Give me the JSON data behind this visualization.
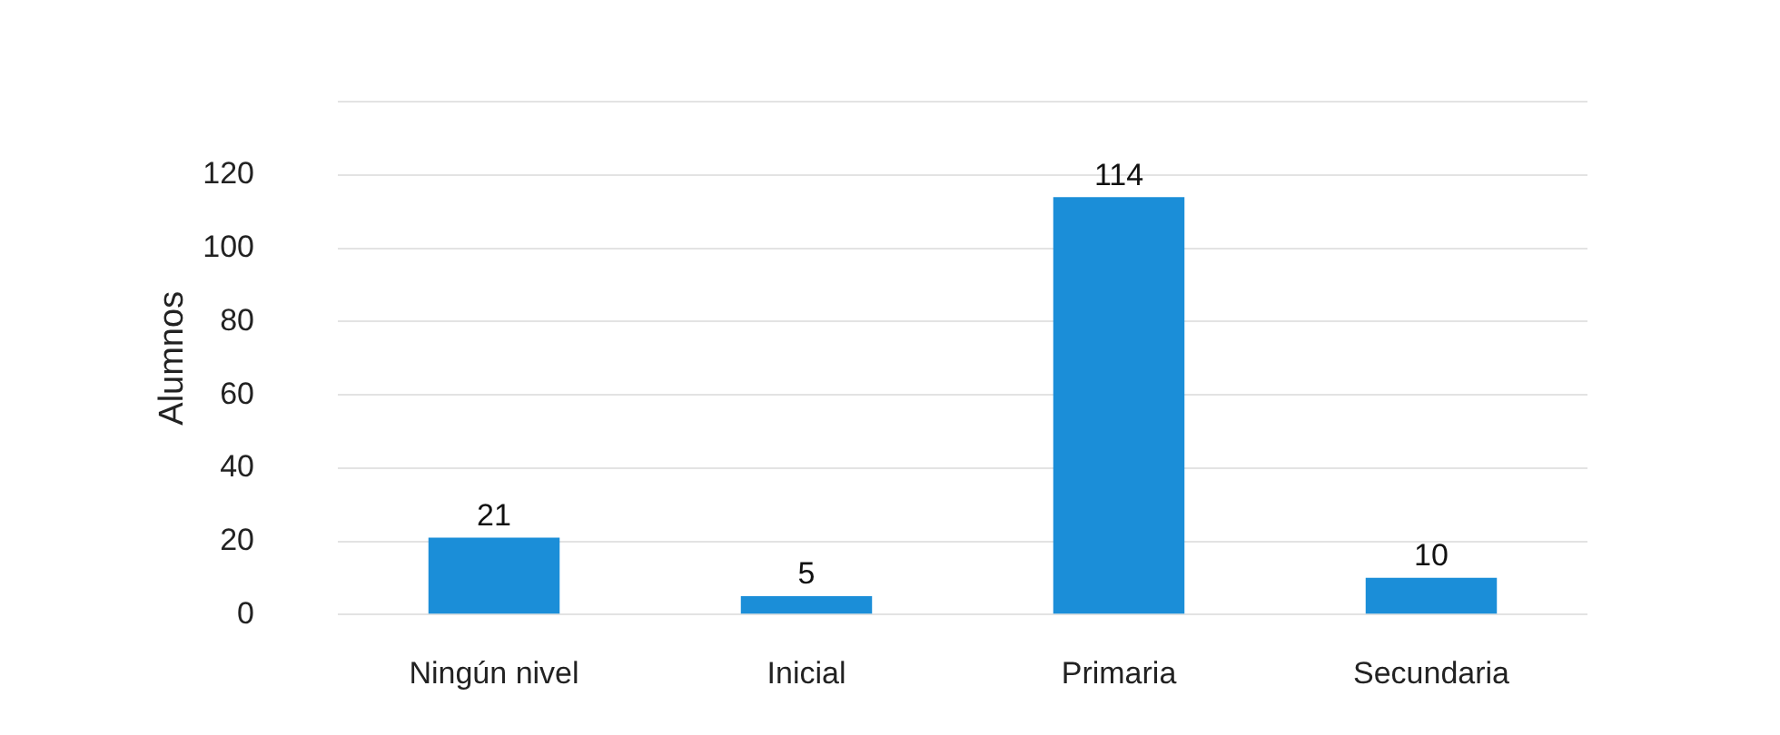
{
  "chart_data": {
    "type": "bar",
    "categories": [
      "Ningún nivel",
      "Inicial",
      "Primaria",
      "Secundaria"
    ],
    "values": [
      21,
      5,
      114,
      10
    ],
    "color": "#1b8ed8",
    "ylabel": "Alumnos",
    "ylim": [
      0,
      140
    ],
    "yticks": [
      0,
      20,
      40,
      60,
      80,
      100,
      120,
      {
        "value": 140,
        "label": null
      }
    ],
    "grid": "y",
    "data_labels": true
  }
}
